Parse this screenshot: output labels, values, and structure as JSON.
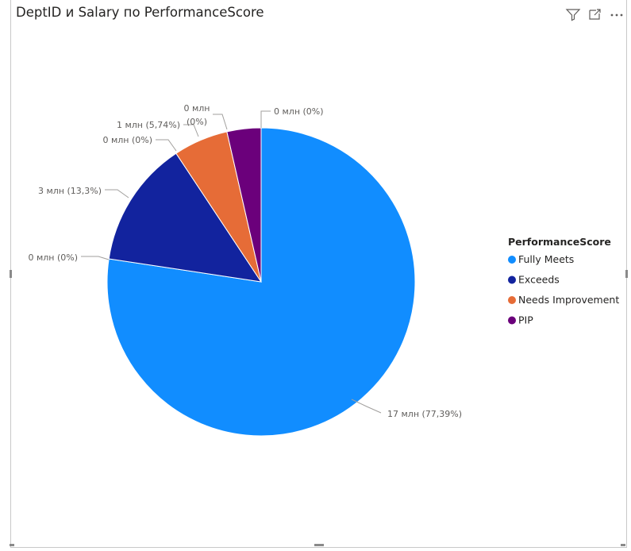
{
  "visual": {
    "title": "DeptID и Salary по PerformanceScore",
    "header_icons": [
      "filter-icon",
      "focus-mode-icon",
      "more-options-icon"
    ]
  },
  "chart_data": {
    "type": "pie",
    "title": "DeptID и Salary по PerformanceScore",
    "legend_title": "PerformanceScore",
    "legend_position": "right",
    "slices": [
      {
        "name": "Fully Meets",
        "percent": 77.39,
        "color": "#118DFF"
      },
      {
        "name": "Exceeds",
        "percent": 13.3,
        "color": "#12239E"
      },
      {
        "name": "Needs Improvement",
        "percent": 5.74,
        "color": "#E66C37"
      },
      {
        "name": "PIP",
        "percent": 3.57,
        "color": "#6B007B"
      }
    ],
    "data_labels": [
      {
        "text": "17 млн (77,39%)"
      },
      {
        "text": "0 млн (0%)"
      },
      {
        "text": "3 млн (13,3%)"
      },
      {
        "text": "0 млн (0%)"
      },
      {
        "text": "1 млн (5,74%)"
      },
      {
        "text": "0 млн",
        "text2": "(0%)"
      },
      {
        "text": "0 млн (0%)"
      }
    ]
  }
}
